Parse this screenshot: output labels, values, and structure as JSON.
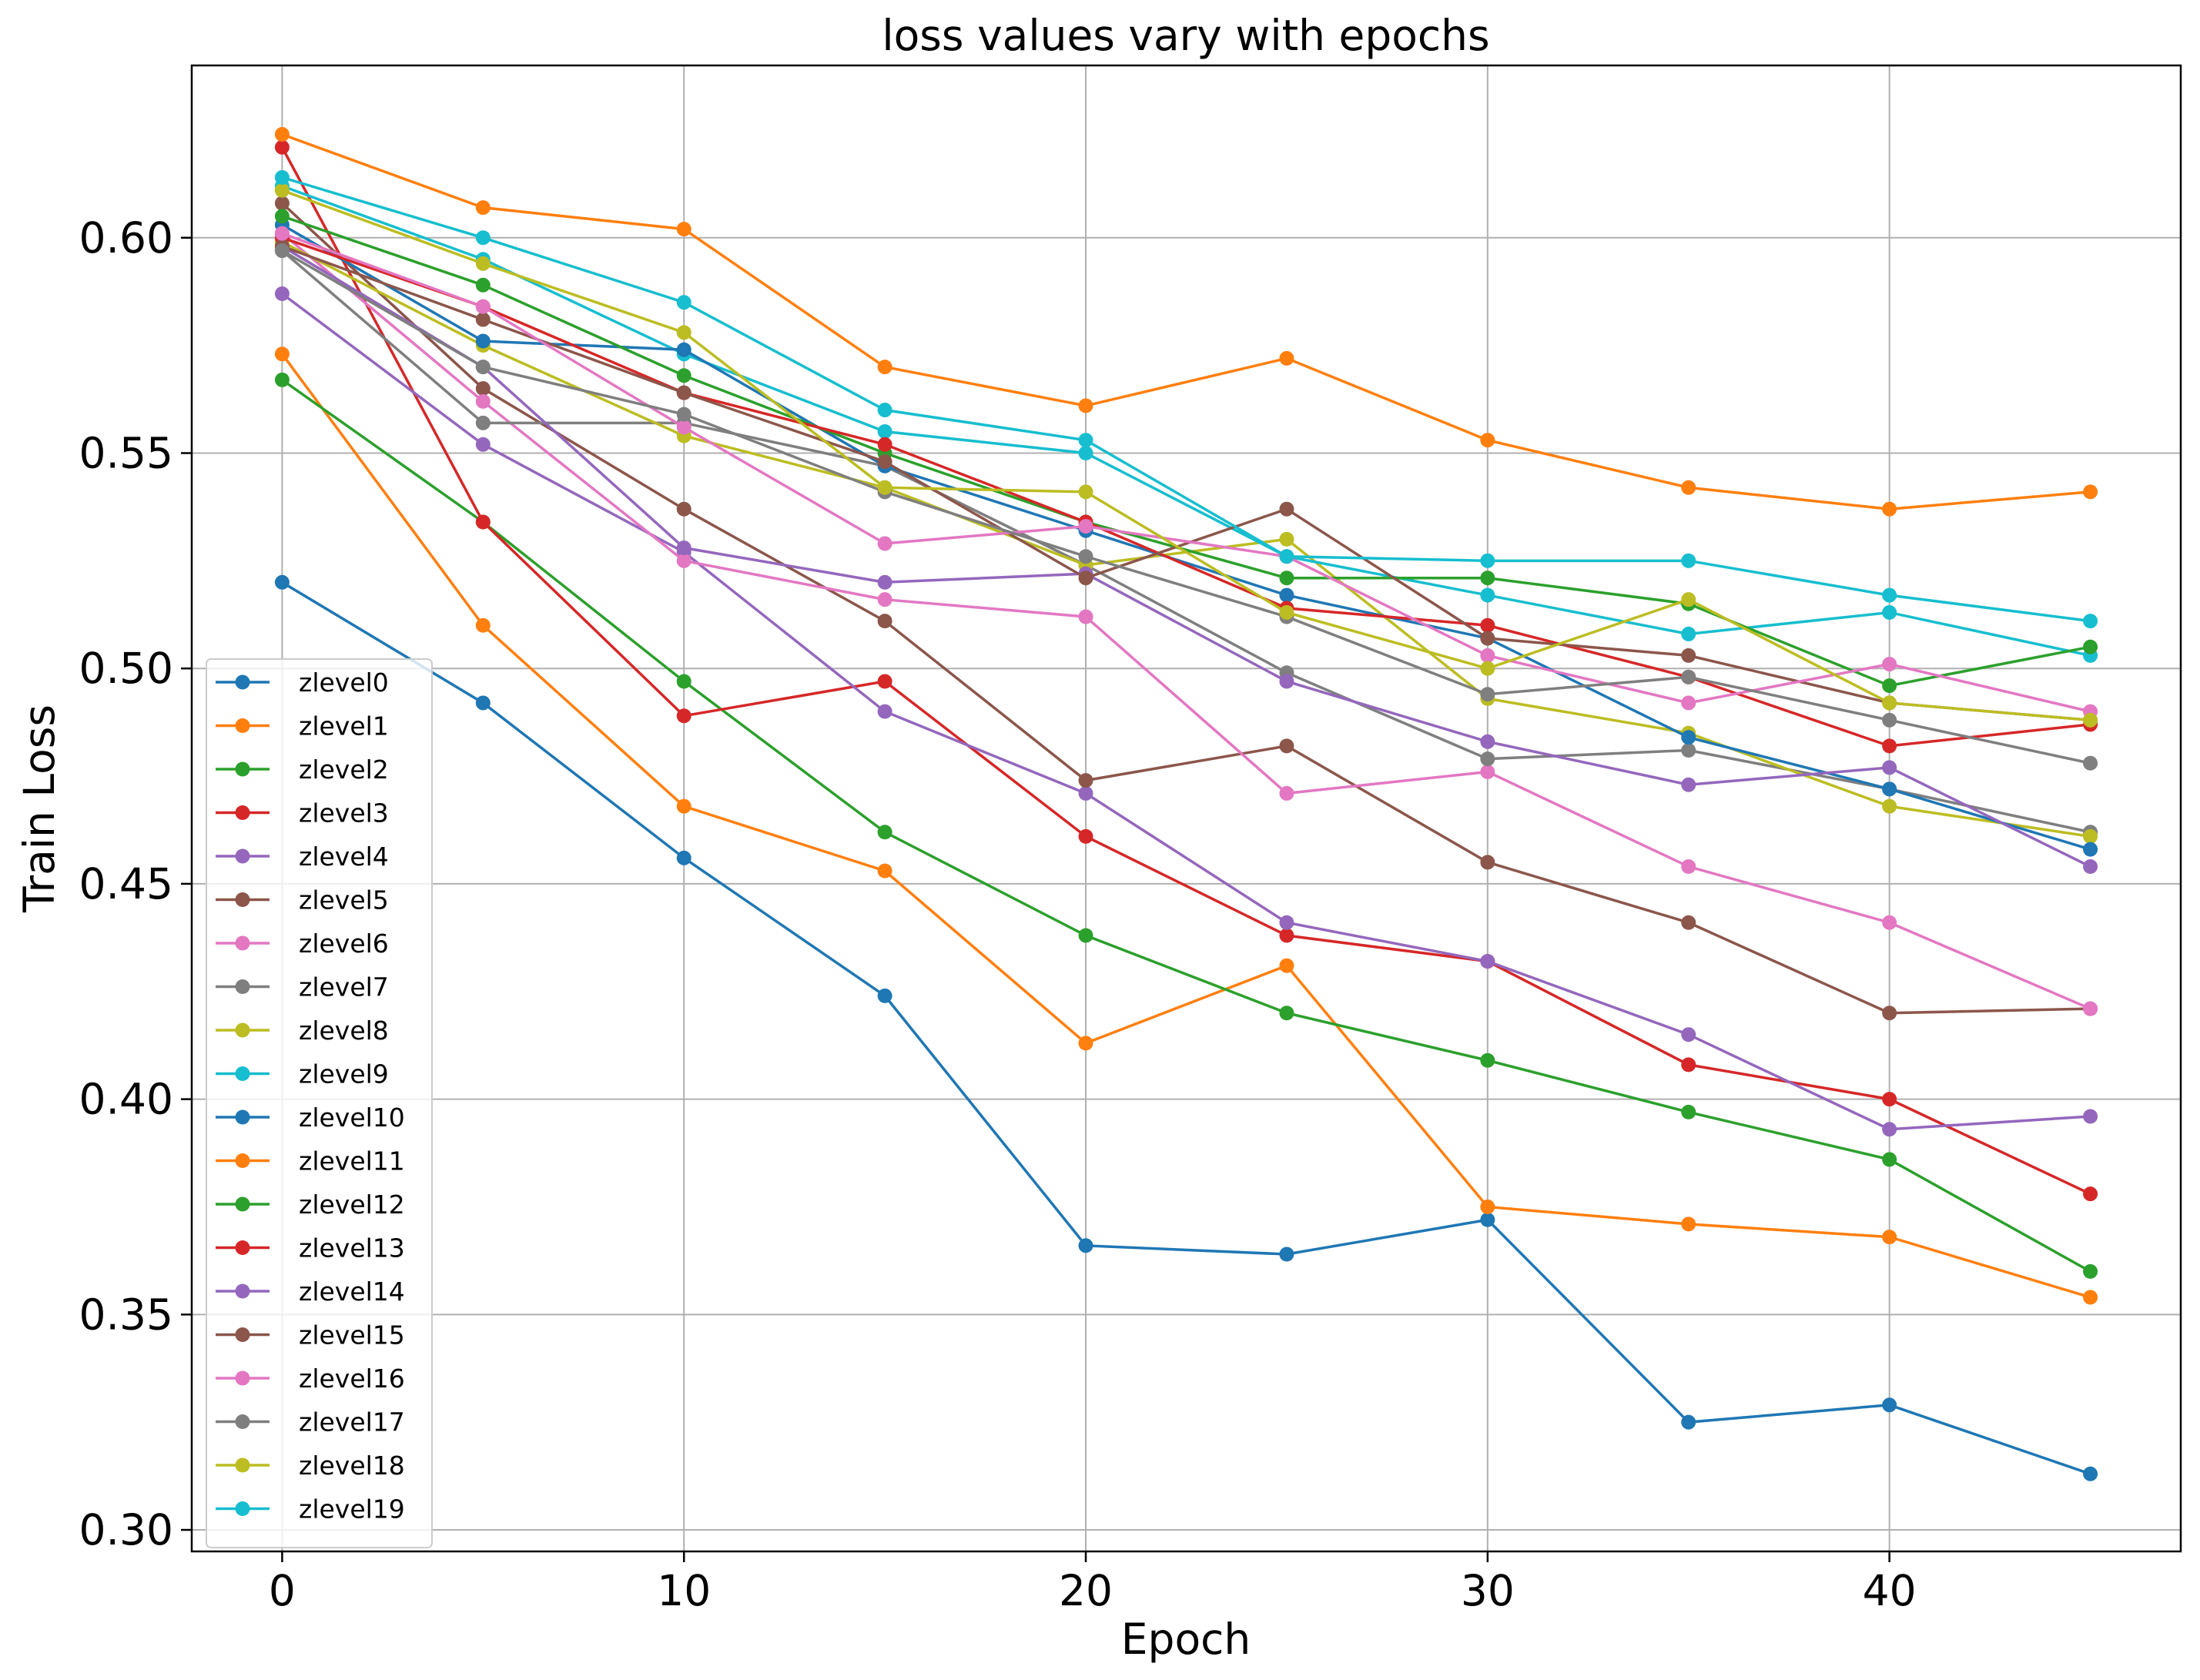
{
  "chart_data": {
    "type": "line",
    "title": "loss values vary with epochs",
    "xlabel": "Epoch",
    "ylabel": "Train Loss",
    "xlim": [
      -2.25,
      47.25
    ],
    "ylim": [
      0.295,
      0.64
    ],
    "xticks": [
      0,
      10,
      20,
      30,
      40
    ],
    "yticks": [
      0.3,
      0.35,
      0.4,
      0.45,
      0.5,
      0.55,
      0.6
    ],
    "ytick_labels": [
      "0.30",
      "0.35",
      "0.40",
      "0.45",
      "0.50",
      "0.55",
      "0.60"
    ],
    "grid": true,
    "legend_position": "lower-left",
    "x": [
      0,
      5,
      10,
      15,
      20,
      25,
      30,
      35,
      40,
      45
    ],
    "series": [
      {
        "name": "zlevel0",
        "color": "#1f77b4",
        "values": [
          0.52,
          0.492,
          0.456,
          0.424,
          0.366,
          0.364,
          0.372,
          0.325,
          0.329,
          0.313
        ]
      },
      {
        "name": "zlevel1",
        "color": "#ff7f0e",
        "values": [
          0.573,
          0.51,
          0.468,
          0.453,
          0.413,
          0.431,
          0.375,
          0.371,
          0.368,
          0.354
        ]
      },
      {
        "name": "zlevel2",
        "color": "#2ca02c",
        "values": [
          0.567,
          0.534,
          0.497,
          0.462,
          0.438,
          0.42,
          0.409,
          0.397,
          0.386,
          0.36
        ]
      },
      {
        "name": "zlevel3",
        "color": "#d62728",
        "values": [
          0.621,
          0.534,
          0.489,
          0.497,
          0.461,
          0.438,
          0.432,
          0.408,
          0.4,
          0.378
        ]
      },
      {
        "name": "zlevel4",
        "color": "#9467bd",
        "values": [
          0.587,
          0.552,
          0.527,
          0.49,
          0.471,
          0.441,
          0.432,
          0.415,
          0.393,
          0.396
        ]
      },
      {
        "name": "zlevel5",
        "color": "#8c564b",
        "values": [
          0.608,
          0.565,
          0.537,
          0.511,
          0.474,
          0.482,
          0.455,
          0.441,
          0.42,
          0.421
        ]
      },
      {
        "name": "zlevel6",
        "color": "#e377c2",
        "values": [
          0.601,
          0.562,
          0.525,
          0.516,
          0.512,
          0.471,
          0.476,
          0.454,
          0.441,
          0.421
        ]
      },
      {
        "name": "zlevel7",
        "color": "#7f7f7f",
        "values": [
          0.597,
          0.557,
          0.557,
          0.547,
          0.524,
          0.499,
          0.479,
          0.481,
          0.472,
          0.462
        ]
      },
      {
        "name": "zlevel8",
        "color": "#bcbd22",
        "values": [
          0.599,
          0.575,
          0.554,
          0.542,
          0.524,
          0.53,
          0.493,
          0.485,
          0.468,
          0.461
        ]
      },
      {
        "name": "zlevel9",
        "color": "#17becf",
        "values": [
          0.612,
          0.595,
          0.573,
          0.555,
          0.55,
          0.526,
          0.517,
          0.508,
          0.513,
          0.503
        ]
      },
      {
        "name": "zlevel10",
        "color": "#1f77b4",
        "values": [
          0.603,
          0.576,
          0.574,
          0.547,
          0.532,
          0.517,
          0.507,
          0.484,
          0.472,
          0.458
        ]
      },
      {
        "name": "zlevel11",
        "color": "#ff7f0e",
        "values": [
          0.624,
          0.607,
          0.602,
          0.57,
          0.561,
          0.572,
          0.553,
          0.542,
          0.537,
          0.541
        ]
      },
      {
        "name": "zlevel12",
        "color": "#2ca02c",
        "values": [
          0.605,
          0.589,
          0.568,
          0.55,
          0.534,
          0.521,
          0.521,
          0.515,
          0.496,
          0.505
        ]
      },
      {
        "name": "zlevel13",
        "color": "#d62728",
        "values": [
          0.6,
          0.584,
          0.564,
          0.552,
          0.534,
          0.514,
          0.51,
          0.498,
          0.482,
          0.487
        ]
      },
      {
        "name": "zlevel14",
        "color": "#9467bd",
        "values": [
          0.598,
          0.57,
          0.528,
          0.52,
          0.522,
          0.497,
          0.483,
          0.473,
          0.477,
          0.454
        ]
      },
      {
        "name": "zlevel15",
        "color": "#8c564b",
        "values": [
          0.598,
          0.581,
          0.564,
          0.548,
          0.521,
          0.537,
          0.507,
          0.503,
          0.492,
          0.488
        ]
      },
      {
        "name": "zlevel16",
        "color": "#e377c2",
        "values": [
          0.601,
          0.584,
          0.556,
          0.529,
          0.533,
          0.526,
          0.503,
          0.492,
          0.501,
          0.49
        ]
      },
      {
        "name": "zlevel17",
        "color": "#7f7f7f",
        "values": [
          0.597,
          0.57,
          0.559,
          0.541,
          0.526,
          0.512,
          0.494,
          0.498,
          0.488,
          0.478
        ]
      },
      {
        "name": "zlevel18",
        "color": "#bcbd22",
        "values": [
          0.611,
          0.594,
          0.578,
          0.542,
          0.541,
          0.513,
          0.5,
          0.516,
          0.492,
          0.488
        ]
      },
      {
        "name": "zlevel19",
        "color": "#17becf",
        "values": [
          0.614,
          0.6,
          0.585,
          0.56,
          0.553,
          0.526,
          0.525,
          0.525,
          0.517,
          0.511
        ]
      }
    ]
  }
}
